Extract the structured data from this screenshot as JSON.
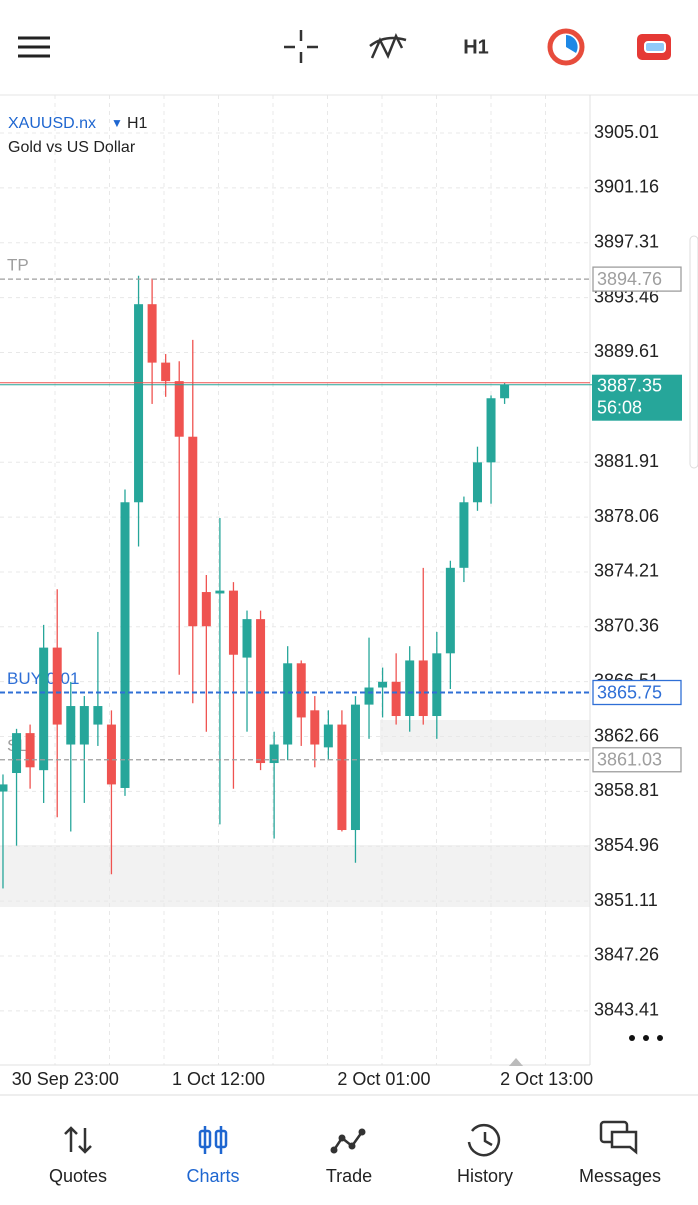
{
  "chart_data": {
    "type": "candlestick",
    "symbol": "XAUUSD.nx",
    "timeframe": "H1",
    "description": "Gold vs US Dollar",
    "open": [
      3858.8,
      3860.1,
      3862.9,
      3860.3,
      3868.9,
      3862.1,
      3862.1,
      3863.5,
      3863.5,
      3859.05,
      3879.1,
      3893.0,
      3888.9,
      3887.6,
      3883.7,
      3872.8,
      3872.7,
      3872.9,
      3868.2,
      3870.9,
      3860.8,
      3862.1,
      3867.8,
      3864.5,
      3861.9,
      3863.5,
      3856.1,
      3864.9,
      3866.1,
      3866.5,
      3864.1,
      3868.0,
      3864.1,
      3868.5,
      3874.5,
      3879.1,
      3881.9,
      3886.4
    ],
    "high": [
      3860.0,
      3863.2,
      3863.5,
      3870.5,
      3873.0,
      3866.5,
      3865.5,
      3870.0,
      3864.5,
      3880.0,
      3895.0,
      3894.8,
      3889.5,
      3889.0,
      3890.5,
      3874.0,
      3878.0,
      3873.5,
      3871.5,
      3871.5,
      3863.0,
      3869.0,
      3868.0,
      3865.5,
      3864.5,
      3864.5,
      3865.5,
      3869.6,
      3867.5,
      3868.5,
      3869.0,
      3874.5,
      3870.0,
      3875.0,
      3879.5,
      3883.0,
      3886.6,
      3887.5
    ],
    "low": [
      3852.0,
      3855.0,
      3859.0,
      3858.0,
      3857.0,
      3856.0,
      3858.0,
      3862.0,
      3853.0,
      3858.5,
      3876.0,
      3886.0,
      3886.5,
      3867.0,
      3865.0,
      3863.0,
      3856.5,
      3859.0,
      3863.0,
      3860.3,
      3855.5,
      3861.0,
      3862.0,
      3860.5,
      3861.0,
      3856.0,
      3853.8,
      3862.5,
      3864.0,
      3863.5,
      3863.0,
      3863.5,
      3862.5,
      3866.0,
      3873.5,
      3878.5,
      3879.0,
      3886.0
    ],
    "close": [
      3859.3,
      3862.9,
      3860.5,
      3868.9,
      3863.5,
      3864.8,
      3864.8,
      3864.8,
      3859.3,
      3879.1,
      3893.0,
      3888.9,
      3887.6,
      3883.7,
      3870.4,
      3870.4,
      3872.9,
      3868.4,
      3870.9,
      3860.8,
      3862.1,
      3867.8,
      3864.0,
      3862.1,
      3863.5,
      3856.1,
      3864.9,
      3866.1,
      3866.5,
      3864.1,
      3868.0,
      3864.1,
      3868.5,
      3874.5,
      3879.1,
      3881.9,
      3886.4,
      3887.35
    ],
    "up_color": "#26a69a",
    "down_color": "#ef5350",
    "grid": true,
    "xlim": [
      -0.22,
      43.3
    ],
    "xticks": [
      {
        "value": 4.6,
        "label": "30 Sep 23:00"
      },
      {
        "value": 15.9,
        "label": "1 Oct 12:00"
      },
      {
        "value": 28.1,
        "label": "2 Oct 01:00"
      },
      {
        "value": 40.1,
        "label": "2 Oct 13:00"
      }
    ],
    "ylim": [
      3839.61,
      3907.68
    ],
    "yticks": [
      3905.01,
      3901.16,
      3897.31,
      3893.46,
      3889.61,
      3881.91,
      3878.06,
      3874.21,
      3870.36,
      3866.51,
      3862.66,
      3858.81,
      3854.96,
      3851.11,
      3847.26,
      3843.41
    ],
    "levels": [
      {
        "name": "TP",
        "value": 3894.76,
        "color": "#9e9e9e"
      },
      {
        "name": "BUY 0.01",
        "value": 3865.75,
        "color": "#2f6fd6"
      },
      {
        "name": "SL",
        "value": 3861.03,
        "color": "#9e9e9e"
      }
    ],
    "last_price": 3887.35,
    "countdown": "56:08"
  },
  "navigation": [
    "Quotes",
    "Charts",
    "Trade",
    "History",
    "Messages"
  ]
}
